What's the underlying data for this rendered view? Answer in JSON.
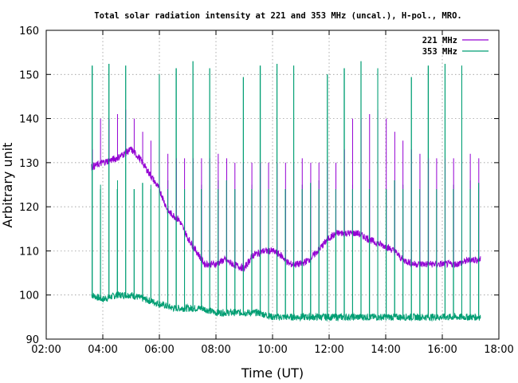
{
  "chart_data": {
    "type": "line",
    "title": "Total solar radiation intensity at 221 and 353 MHz (uncal.), H-pol., MRO.",
    "xlabel": "Time (UT)",
    "ylabel": "Arbitrary unit",
    "x_range_hours": [
      2,
      18
    ],
    "ylim": [
      90,
      160
    ],
    "x_ticks": [
      "02:00",
      "04:00",
      "06:00",
      "08:00",
      "10:00",
      "12:00",
      "14:00",
      "16:00",
      "18:00"
    ],
    "y_ticks": [
      90,
      100,
      110,
      120,
      130,
      140,
      150,
      160
    ],
    "grid": true,
    "legend_position": "top-right",
    "series": [
      {
        "name": "221 MHz",
        "color": "#9400d3",
        "x_hours": [
          3.6,
          4.0,
          4.5,
          5.0,
          5.3,
          5.6,
          6.0,
          6.3,
          6.7,
          7.0,
          7.3,
          7.6,
          8.0,
          8.3,
          8.6,
          9.0,
          9.3,
          9.7,
          10.0,
          10.3,
          10.6,
          11.0,
          11.3,
          11.6,
          12.0,
          12.3,
          12.6,
          13.0,
          13.3,
          13.6,
          14.0,
          14.3,
          14.6,
          15.0,
          15.5,
          16.0,
          16.5,
          17.0,
          17.35
        ],
        "values": [
          129,
          130,
          131,
          133,
          131,
          128,
          124,
          119,
          117,
          113,
          110,
          107,
          107,
          108,
          107,
          106,
          109,
          110,
          110,
          109,
          107,
          107,
          108,
          110,
          113,
          114,
          114,
          114,
          113,
          112,
          111,
          110,
          108,
          107,
          107,
          107,
          107,
          108,
          108
        ],
        "spike_peaks": [
          133,
          140,
          140,
          141,
          142,
          140,
          137,
          135,
          133,
          132,
          131,
          131,
          131,
          131,
          131,
          132,
          131,
          130,
          130,
          130,
          130,
          130,
          130,
          130,
          130,
          131,
          130,
          130,
          130,
          130
        ]
      },
      {
        "name": "353 MHz",
        "color": "#009e73",
        "x_hours": [
          3.6,
          4.0,
          4.5,
          5.0,
          5.5,
          6.0,
          6.5,
          7.0,
          7.5,
          8.0,
          8.5,
          9.0,
          9.5,
          10.0,
          10.5,
          11.0,
          11.5,
          12.0,
          12.5,
          13.0,
          13.5,
          14.0,
          14.5,
          15.0,
          15.5,
          16.0,
          16.5,
          17.0,
          17.35
        ],
        "values": [
          100,
          99,
          100,
          100,
          99,
          98,
          97,
          97,
          97,
          96,
          96,
          96,
          96,
          95,
          95,
          95,
          95,
          95,
          95,
          95,
          95,
          95,
          95,
          95,
          95,
          95,
          95,
          95,
          95
        ],
        "spike_peaks": [
          152,
          126,
          153,
          150,
          152
        ]
      }
    ]
  }
}
